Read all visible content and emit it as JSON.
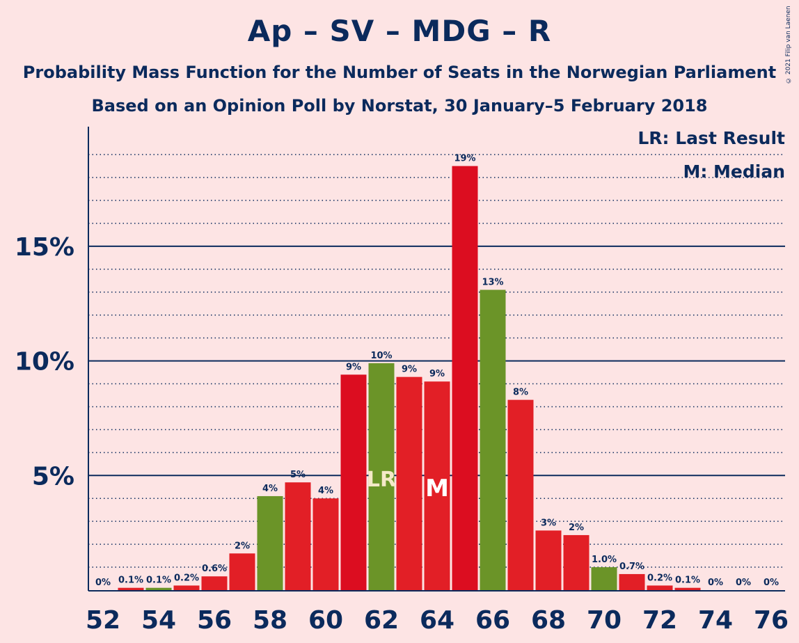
{
  "title": "Ap – SV – MDG – R",
  "subtitle": "Probability Mass Function for the Number of Seats in the Norwegian Parliament",
  "subtitle2": "Based on an Opinion Poll by Norstat, 30 January–5 February 2018",
  "copyright": "© 2021 Filip van Laenen",
  "legend": {
    "lr": "LR: Last Result",
    "median": "M: Median"
  },
  "colors": {
    "background": "#fde4e4",
    "text": "#0b2a5c",
    "red_bar": "#e21f26",
    "green_bar": "#6b9428",
    "dark_red_bar": "#dc0d20"
  },
  "chart_data": {
    "type": "bar",
    "x": [
      52,
      53,
      54,
      55,
      56,
      57,
      58,
      59,
      60,
      61,
      62,
      63,
      64,
      65,
      66,
      67,
      68,
      69,
      70,
      71,
      72,
      73,
      74,
      75,
      76
    ],
    "values": [
      0,
      0.001,
      0.001,
      0.002,
      0.006,
      0.016,
      0.041,
      0.047,
      0.04,
      0.094,
      0.099,
      0.093,
      0.091,
      0.185,
      0.131,
      0.083,
      0.026,
      0.024,
      0.01,
      0.007,
      0.002,
      0.001,
      0,
      0,
      0
    ],
    "labels": [
      "0%",
      "0.1%",
      "0.1%",
      "0.2%",
      "0.6%",
      "2%",
      "4%",
      "5%",
      "4%",
      "9%",
      "10%",
      "9%",
      "9%",
      "19%",
      "13%",
      "8%",
      "3%",
      "2%",
      "1.0%",
      "0.7%",
      "0.2%",
      "0.1%",
      "0%",
      "0%",
      "0%"
    ],
    "bar_colors": [
      "red",
      "red",
      "green",
      "red",
      "red",
      "red",
      "green",
      "red",
      "red",
      "darkred",
      "green",
      "red",
      "red",
      "darkred",
      "green",
      "red",
      "red",
      "red",
      "green",
      "red",
      "red",
      "red",
      "red",
      "red",
      "red"
    ],
    "x_tick_labels": [
      "52",
      "54",
      "56",
      "58",
      "60",
      "62",
      "64",
      "66",
      "68",
      "70",
      "72",
      "74",
      "76"
    ],
    "y_tick_labels": [
      "5%",
      "10%",
      "15%"
    ],
    "y_ticks": [
      0.05,
      0.1,
      0.15
    ],
    "ylim": [
      0,
      0.2
    ],
    "last_result": {
      "x": 62,
      "label": "LR"
    },
    "median": {
      "x": 64,
      "label": "M"
    },
    "grid": "dotted minor every 1%, solid major every 5%"
  }
}
